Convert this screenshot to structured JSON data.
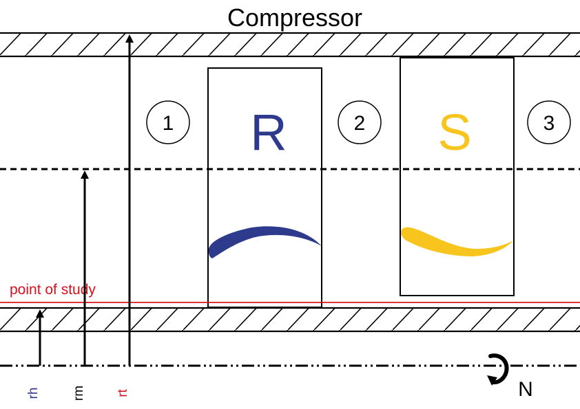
{
  "title": "Compressor",
  "stations": [
    "1",
    "2",
    "3"
  ],
  "rotor": {
    "label": "R",
    "color": "#2e3a8c"
  },
  "stator": {
    "label": "S",
    "color": "#f7c51e"
  },
  "study_line": {
    "label": "point of study",
    "color": "#d8121c"
  },
  "radii": [
    {
      "label": "rh",
      "color": "#2e3a8c"
    },
    {
      "label": "rm",
      "color": "#000000"
    },
    {
      "label": "rt",
      "color": "#d8121c"
    }
  ],
  "rotation_label": "N"
}
